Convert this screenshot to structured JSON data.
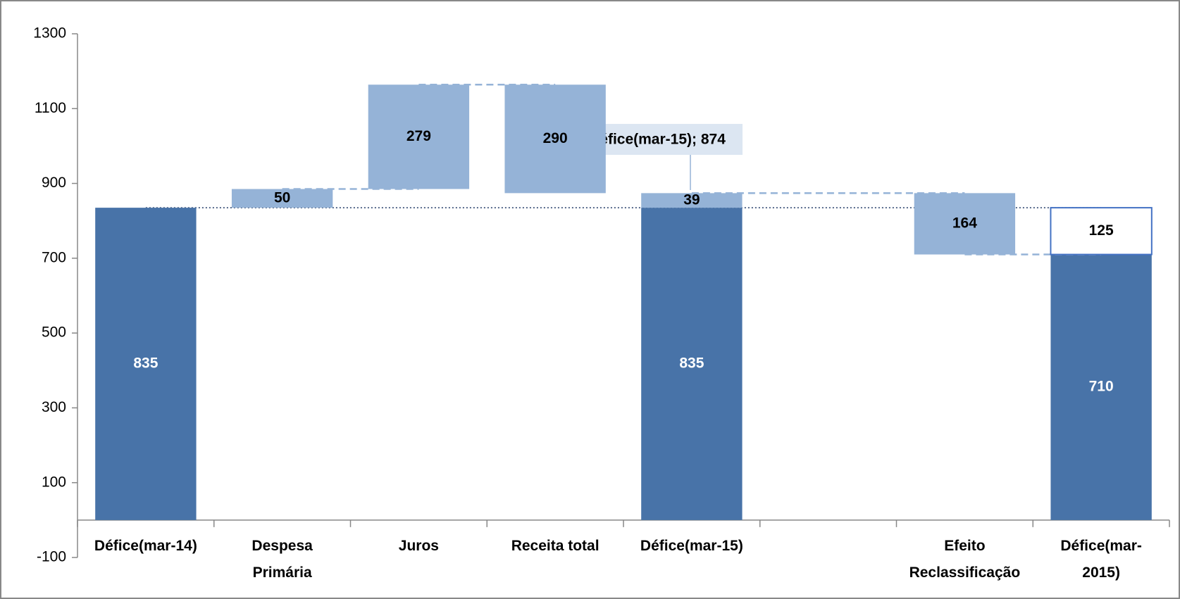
{
  "chart_data": {
    "type": "waterfall",
    "categories": [
      "Défice(mar-14)",
      "Despesa Primária",
      "Juros",
      "Receita total",
      "Défice(mar-15)",
      null,
      "Efeito Reclassificação",
      "Défice(mar-2015)"
    ],
    "series": [
      {
        "color": "#4873a8",
        "values": [
          835,
          null,
          null,
          null,
          835,
          null,
          null,
          710
        ]
      },
      {
        "color": "#95b3d7",
        "values": [
          null,
          50,
          279,
          -290,
          39,
          null,
          -164,
          null
        ],
        "value_labels": [
          null,
          "50",
          "279",
          "290",
          "39",
          null,
          "164",
          null
        ]
      },
      {
        "color": "#ffffff",
        "values": [
          null,
          null,
          null,
          null,
          null,
          null,
          null,
          125
        ]
      }
    ],
    "annotation": "Défice(mar-15); 874",
    "hline": 835,
    "ylim": [
      -100,
      1300
    ],
    "yticks": [
      -100,
      100,
      300,
      500,
      700,
      900,
      1100,
      1300
    ]
  }
}
